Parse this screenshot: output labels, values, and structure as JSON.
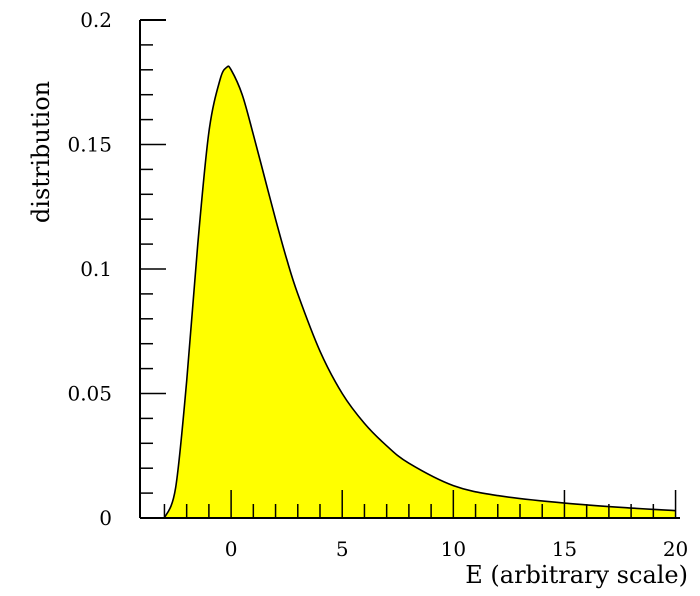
{
  "chart_data": {
    "type": "area",
    "title": "",
    "xlabel": "E (arbitrary scale)",
    "ylabel": "distribution",
    "xlim": [
      -4.1,
      20.2
    ],
    "ylim": [
      0,
      0.2
    ],
    "grid": false,
    "legend": "none",
    "fill_color": "#ffff00",
    "line_color": "#000000",
    "x_ticks": [
      {
        "value": 0,
        "label": "0"
      },
      {
        "value": 5,
        "label": "5"
      },
      {
        "value": 10,
        "label": "10"
      },
      {
        "value": 15,
        "label": "15"
      },
      {
        "value": 20,
        "label": "20"
      }
    ],
    "y_ticks": [
      {
        "value": 0,
        "label": "0"
      },
      {
        "value": 0.05,
        "label": "0.05"
      },
      {
        "value": 0.1,
        "label": "0.1"
      },
      {
        "value": 0.15,
        "label": "0.15"
      },
      {
        "value": 0.2,
        "label": "0.2"
      }
    ],
    "series": [
      {
        "x": [
          -3.0,
          -2.5,
          -2.0,
          -1.5,
          -1.0,
          -0.5,
          -0.2,
          0.0,
          0.5,
          1.0,
          1.5,
          2.0,
          2.5,
          3.0,
          4.0,
          5.0,
          6.0,
          7.0,
          8.0,
          10.0,
          12.0,
          15.0,
          18.0,
          20.0
        ],
        "y": [
          0.0,
          0.012,
          0.055,
          0.11,
          0.155,
          0.176,
          0.181,
          0.18,
          0.17,
          0.154,
          0.137,
          0.12,
          0.104,
          0.09,
          0.067,
          0.05,
          0.038,
          0.029,
          0.022,
          0.013,
          0.009,
          0.006,
          0.004,
          0.003
        ]
      }
    ]
  }
}
